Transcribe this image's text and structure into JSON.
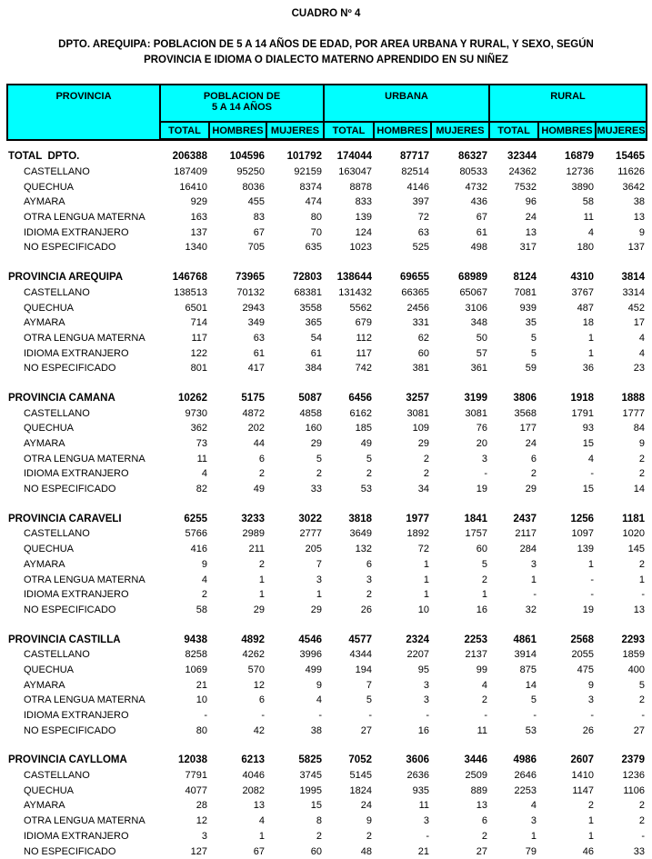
{
  "title": "CUADRO Nº 4",
  "subtitle_line1": "DPTO. AREQUIPA: POBLACION DE 5 A 14 AÑOS DE EDAD, POR AREA URBANA Y RURAL, Y SEXO, SEGÚN",
  "subtitle_line2": "PROVINCIA E IDIOMA O DIALECTO MATERNO APRENDIDO EN SU NIÑEZ",
  "colors": {
    "header_bg": "#00FFFF",
    "border": "#000000",
    "text": "#000000"
  },
  "header": {
    "provincia": "PROVINCIA",
    "groups": [
      {
        "line1": "POBLACION DE",
        "line2": "5 A 14 AÑOS"
      },
      {
        "label": "URBANA"
      },
      {
        "label": "RURAL"
      }
    ],
    "sub_columns": [
      "TOTAL",
      "HOMBRES",
      "MUJERES"
    ]
  },
  "sections": [
    {
      "name": "TOTAL  DPTO.",
      "values": [
        "206388",
        "104596",
        "101792",
        "174044",
        "87717",
        "86327",
        "32344",
        "16879",
        "15465"
      ],
      "rows": [
        {
          "label": "CASTELLANO",
          "values": [
            "187409",
            "95250",
            "92159",
            "163047",
            "82514",
            "80533",
            "24362",
            "12736",
            "11626"
          ]
        },
        {
          "label": "QUECHUA",
          "values": [
            "16410",
            "8036",
            "8374",
            "8878",
            "4146",
            "4732",
            "7532",
            "3890",
            "3642"
          ]
        },
        {
          "label": "AYMARA",
          "values": [
            "929",
            "455",
            "474",
            "833",
            "397",
            "436",
            "96",
            "58",
            "38"
          ]
        },
        {
          "label": "OTRA LENGUA MATERNA",
          "values": [
            "163",
            "83",
            "80",
            "139",
            "72",
            "67",
            "24",
            "11",
            "13"
          ]
        },
        {
          "label": "IDIOMA EXTRANJERO",
          "values": [
            "137",
            "67",
            "70",
            "124",
            "63",
            "61",
            "13",
            "4",
            "9"
          ]
        },
        {
          "label": "NO ESPECIFICADO",
          "values": [
            "1340",
            "705",
            "635",
            "1023",
            "525",
            "498",
            "317",
            "180",
            "137"
          ]
        }
      ]
    },
    {
      "name": "PROVINCIA AREQUIPA",
      "values": [
        "146768",
        "73965",
        "72803",
        "138644",
        "69655",
        "68989",
        "8124",
        "4310",
        "3814"
      ],
      "rows": [
        {
          "label": "CASTELLANO",
          "values": [
            "138513",
            "70132",
            "68381",
            "131432",
            "66365",
            "65067",
            "7081",
            "3767",
            "3314"
          ]
        },
        {
          "label": "QUECHUA",
          "values": [
            "6501",
            "2943",
            "3558",
            "5562",
            "2456",
            "3106",
            "939",
            "487",
            "452"
          ]
        },
        {
          "label": "AYMARA",
          "values": [
            "714",
            "349",
            "365",
            "679",
            "331",
            "348",
            "35",
            "18",
            "17"
          ]
        },
        {
          "label": "OTRA LENGUA MATERNA",
          "values": [
            "117",
            "63",
            "54",
            "112",
            "62",
            "50",
            "5",
            "1",
            "4"
          ]
        },
        {
          "label": "IDIOMA EXTRANJERO",
          "values": [
            "122",
            "61",
            "61",
            "117",
            "60",
            "57",
            "5",
            "1",
            "4"
          ]
        },
        {
          "label": "NO ESPECIFICADO",
          "values": [
            "801",
            "417",
            "384",
            "742",
            "381",
            "361",
            "59",
            "36",
            "23"
          ]
        }
      ]
    },
    {
      "name": "PROVINCIA CAMANA",
      "values": [
        "10262",
        "5175",
        "5087",
        "6456",
        "3257",
        "3199",
        "3806",
        "1918",
        "1888"
      ],
      "rows": [
        {
          "label": "CASTELLANO",
          "values": [
            "9730",
            "4872",
            "4858",
            "6162",
            "3081",
            "3081",
            "3568",
            "1791",
            "1777"
          ]
        },
        {
          "label": "QUECHUA",
          "values": [
            "362",
            "202",
            "160",
            "185",
            "109",
            "76",
            "177",
            "93",
            "84"
          ]
        },
        {
          "label": "AYMARA",
          "values": [
            "73",
            "44",
            "29",
            "49",
            "29",
            "20",
            "24",
            "15",
            "9"
          ]
        },
        {
          "label": "OTRA LENGUA MATERNA",
          "values": [
            "11",
            "6",
            "5",
            "5",
            "2",
            "3",
            "6",
            "4",
            "2"
          ]
        },
        {
          "label": "IDIOMA EXTRANJERO",
          "values": [
            "4",
            "2",
            "2",
            "2",
            "2",
            "-",
            "2",
            "-",
            "2"
          ]
        },
        {
          "label": "NO ESPECIFICADO",
          "values": [
            "82",
            "49",
            "33",
            "53",
            "34",
            "19",
            "29",
            "15",
            "14"
          ]
        }
      ]
    },
    {
      "name": "PROVINCIA CARAVELI",
      "values": [
        "6255",
        "3233",
        "3022",
        "3818",
        "1977",
        "1841",
        "2437",
        "1256",
        "1181"
      ],
      "rows": [
        {
          "label": "CASTELLANO",
          "values": [
            "5766",
            "2989",
            "2777",
            "3649",
            "1892",
            "1757",
            "2117",
            "1097",
            "1020"
          ]
        },
        {
          "label": "QUECHUA",
          "values": [
            "416",
            "211",
            "205",
            "132",
            "72",
            "60",
            "284",
            "139",
            "145"
          ]
        },
        {
          "label": "AYMARA",
          "values": [
            "9",
            "2",
            "7",
            "6",
            "1",
            "5",
            "3",
            "1",
            "2"
          ]
        },
        {
          "label": "OTRA LENGUA MATERNA",
          "values": [
            "4",
            "1",
            "3",
            "3",
            "1",
            "2",
            "1",
            "-",
            "1"
          ]
        },
        {
          "label": "IDIOMA EXTRANJERO",
          "values": [
            "2",
            "1",
            "1",
            "2",
            "1",
            "1",
            "-",
            "-",
            "-"
          ]
        },
        {
          "label": "NO ESPECIFICADO",
          "values": [
            "58",
            "29",
            "29",
            "26",
            "10",
            "16",
            "32",
            "19",
            "13"
          ]
        }
      ]
    },
    {
      "name": "PROVINCIA CASTILLA",
      "values": [
        "9438",
        "4892",
        "4546",
        "4577",
        "2324",
        "2253",
        "4861",
        "2568",
        "2293"
      ],
      "rows": [
        {
          "label": "CASTELLANO",
          "values": [
            "8258",
            "4262",
            "3996",
            "4344",
            "2207",
            "2137",
            "3914",
            "2055",
            "1859"
          ]
        },
        {
          "label": "QUECHUA",
          "values": [
            "1069",
            "570",
            "499",
            "194",
            "95",
            "99",
            "875",
            "475",
            "400"
          ]
        },
        {
          "label": "AYMARA",
          "values": [
            "21",
            "12",
            "9",
            "7",
            "3",
            "4",
            "14",
            "9",
            "5"
          ]
        },
        {
          "label": "OTRA LENGUA MATERNA",
          "values": [
            "10",
            "6",
            "4",
            "5",
            "3",
            "2",
            "5",
            "3",
            "2"
          ]
        },
        {
          "label": "IDIOMA EXTRANJERO",
          "values": [
            "-",
            "-",
            "-",
            "-",
            "-",
            "-",
            "-",
            "-",
            "-"
          ]
        },
        {
          "label": "NO ESPECIFICADO",
          "values": [
            "80",
            "42",
            "38",
            "27",
            "16",
            "11",
            "53",
            "26",
            "27"
          ]
        }
      ]
    },
    {
      "name": "PROVINCIA CAYLLOMA",
      "values": [
        "12038",
        "6213",
        "5825",
        "7052",
        "3606",
        "3446",
        "4986",
        "2607",
        "2379"
      ],
      "rows": [
        {
          "label": "CASTELLANO",
          "values": [
            "7791",
            "4046",
            "3745",
            "5145",
            "2636",
            "2509",
            "2646",
            "1410",
            "1236"
          ]
        },
        {
          "label": "QUECHUA",
          "values": [
            "4077",
            "2082",
            "1995",
            "1824",
            "935",
            "889",
            "2253",
            "1147",
            "1106"
          ]
        },
        {
          "label": "AYMARA",
          "values": [
            "28",
            "13",
            "15",
            "24",
            "11",
            "13",
            "4",
            "2",
            "2"
          ]
        },
        {
          "label": "OTRA LENGUA MATERNA",
          "values": [
            "12",
            "4",
            "8",
            "9",
            "3",
            "6",
            "3",
            "1",
            "2"
          ]
        },
        {
          "label": "IDIOMA EXTRANJERO",
          "values": [
            "3",
            "1",
            "2",
            "2",
            "-",
            "2",
            "1",
            "1",
            "-"
          ]
        },
        {
          "label": "NO ESPECIFICADO",
          "values": [
            "127",
            "67",
            "60",
            "48",
            "21",
            "27",
            "79",
            "46",
            "33"
          ]
        }
      ]
    }
  ]
}
